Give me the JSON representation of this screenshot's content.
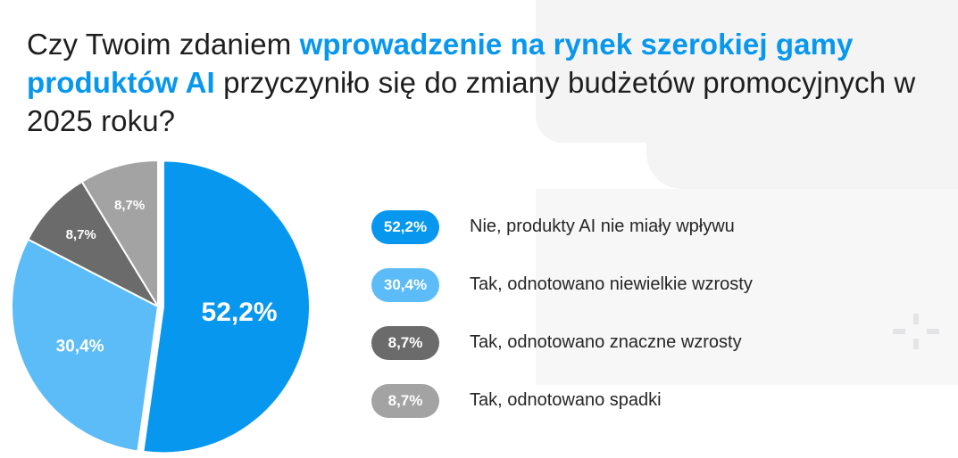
{
  "title": {
    "part1": "Czy Twoim zdaniem ",
    "highlight1": "wprowadzenie na rynek szerokiej gamy produktów AI",
    "part2": " przyczyniło się do zmiany budżetów promocyjnych w 2025 roku?"
  },
  "colors": {
    "accent": "#0797ee",
    "light_blue": "#5cbcf8",
    "dark_gray": "#6b6b6b",
    "light_gray": "#a3a3a3"
  },
  "chart_data": {
    "type": "pie",
    "slices": [
      {
        "label": "Nie, produkty AI nie miały wpływu",
        "value": 52.2,
        "display": "52,2%",
        "color": "#0797ee"
      },
      {
        "label": "Tak, odnotowano niewielkie wzrosty",
        "value": 30.4,
        "display": "30,4%",
        "color": "#5cbcf8"
      },
      {
        "label": "Tak, odnotowano znaczne wzrosty",
        "value": 8.7,
        "display": "8,7%",
        "color": "#6b6b6b"
      },
      {
        "label": "Tak, odnotowano spadki",
        "value": 8.7,
        "display": "8,7%",
        "color": "#a3a3a3"
      }
    ],
    "legend_position": "right"
  }
}
